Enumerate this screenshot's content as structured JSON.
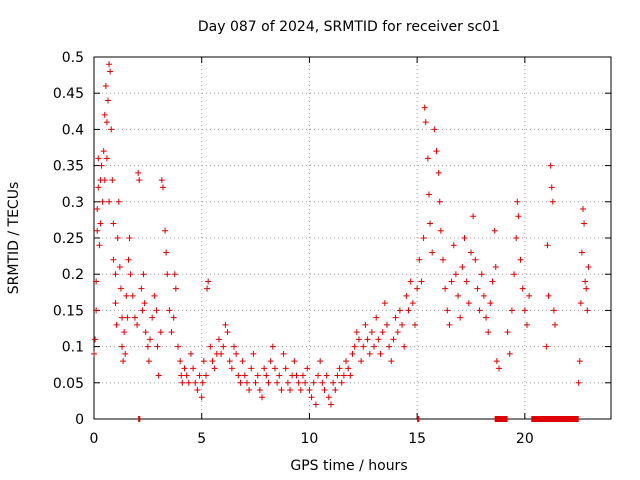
{
  "chart_data": {
    "type": "scatter",
    "title": "Day 087 of 2024, SRMTID for receiver sc01",
    "xlabel": "GPS time / hours",
    "ylabel": "SRMTID / TECUs",
    "xlim": [
      0,
      24
    ],
    "ylim": [
      0,
      0.5
    ],
    "xticks": [
      0,
      5,
      10,
      15,
      20
    ],
    "yticks": [
      0,
      0.05,
      0.1,
      0.15,
      0.2,
      0.25,
      0.3,
      0.35,
      0.4,
      0.45,
      0.5
    ],
    "ytick_labels": [
      "0",
      "0.05",
      "0.1",
      "0.15",
      "0.2",
      "0.25",
      "0.3",
      "0.35",
      "0.4",
      "0.45",
      "0.5"
    ],
    "grid": true,
    "marker": "+",
    "color": "#e00000",
    "series": [
      {
        "name": "SRMTID",
        "points": [
          [
            0.0,
            0.09
          ],
          [
            0.05,
            0.11
          ],
          [
            0.1,
            0.19
          ],
          [
            0.1,
            0.15
          ],
          [
            0.15,
            0.26
          ],
          [
            0.15,
            0.29
          ],
          [
            0.2,
            0.32
          ],
          [
            0.2,
            0.36
          ],
          [
            0.25,
            0.24
          ],
          [
            0.3,
            0.27
          ],
          [
            0.3,
            0.33
          ],
          [
            0.35,
            0.35
          ],
          [
            0.4,
            0.3
          ],
          [
            0.45,
            0.37
          ],
          [
            0.5,
            0.42
          ],
          [
            0.5,
            0.33
          ],
          [
            0.55,
            0.46
          ],
          [
            0.6,
            0.41
          ],
          [
            0.6,
            0.36
          ],
          [
            0.65,
            0.44
          ],
          [
            0.7,
            0.49
          ],
          [
            0.75,
            0.48
          ],
          [
            0.7,
            0.3
          ],
          [
            0.8,
            0.4
          ],
          [
            0.85,
            0.33
          ],
          [
            0.9,
            0.27
          ],
          [
            0.9,
            0.22
          ],
          [
            1.0,
            0.2
          ],
          [
            1.0,
            0.16
          ],
          [
            1.05,
            0.13
          ],
          [
            1.1,
            0.25
          ],
          [
            1.15,
            0.3
          ],
          [
            1.2,
            0.21
          ],
          [
            1.25,
            0.18
          ],
          [
            1.3,
            0.14
          ],
          [
            1.3,
            0.1
          ],
          [
            1.35,
            0.08
          ],
          [
            1.4,
            0.12
          ],
          [
            1.45,
            0.09
          ],
          [
            1.5,
            0.17
          ],
          [
            1.55,
            0.14
          ],
          [
            1.6,
            0.22
          ],
          [
            1.65,
            0.25
          ],
          [
            1.7,
            0.2
          ],
          [
            1.8,
            0.17
          ],
          [
            1.9,
            0.14
          ],
          [
            2.0,
            0.13
          ],
          [
            2.05,
            0.34
          ],
          [
            2.1,
            0.33
          ],
          [
            2.2,
            0.18
          ],
          [
            2.25,
            0.15
          ],
          [
            2.3,
            0.2
          ],
          [
            2.35,
            0.16
          ],
          [
            2.4,
            0.12
          ],
          [
            2.5,
            0.1
          ],
          [
            2.55,
            0.08
          ],
          [
            2.6,
            0.11
          ],
          [
            2.7,
            0.14
          ],
          [
            2.8,
            0.17
          ],
          [
            2.9,
            0.15
          ],
          [
            2.95,
            0.1
          ],
          [
            3.0,
            0.06
          ],
          [
            3.1,
            0.12
          ],
          [
            3.15,
            0.33
          ],
          [
            3.2,
            0.32
          ],
          [
            3.3,
            0.26
          ],
          [
            3.35,
            0.23
          ],
          [
            3.4,
            0.2
          ],
          [
            3.5,
            0.15
          ],
          [
            3.6,
            0.12
          ],
          [
            3.7,
            0.14
          ],
          [
            3.75,
            0.2
          ],
          [
            3.8,
            0.18
          ],
          [
            3.9,
            0.1
          ],
          [
            4.0,
            0.08
          ],
          [
            4.05,
            0.06
          ],
          [
            4.1,
            0.05
          ],
          [
            4.2,
            0.07
          ],
          [
            4.3,
            0.06
          ],
          [
            4.4,
            0.05
          ],
          [
            4.5,
            0.09
          ],
          [
            4.6,
            0.07
          ],
          [
            4.7,
            0.05
          ],
          [
            4.8,
            0.04
          ],
          [
            4.9,
            0.06
          ],
          [
            5.0,
            0.03
          ],
          [
            5.05,
            0.05
          ],
          [
            5.1,
            0.08
          ],
          [
            5.2,
            0.06
          ],
          [
            5.25,
            0.18
          ],
          [
            5.3,
            0.19
          ],
          [
            5.4,
            0.1
          ],
          [
            5.5,
            0.08
          ],
          [
            5.6,
            0.07
          ],
          [
            5.7,
            0.09
          ],
          [
            5.8,
            0.11
          ],
          [
            5.9,
            0.09
          ],
          [
            6.0,
            0.1
          ],
          [
            6.1,
            0.13
          ],
          [
            6.2,
            0.12
          ],
          [
            6.3,
            0.08
          ],
          [
            6.4,
            0.07
          ],
          [
            6.5,
            0.1
          ],
          [
            6.6,
            0.09
          ],
          [
            6.7,
            0.06
          ],
          [
            6.8,
            0.05
          ],
          [
            6.9,
            0.08
          ],
          [
            7.0,
            0.06
          ],
          [
            7.1,
            0.05
          ],
          [
            7.2,
            0.04
          ],
          [
            7.3,
            0.07
          ],
          [
            7.4,
            0.09
          ],
          [
            7.5,
            0.05
          ],
          [
            7.6,
            0.06
          ],
          [
            7.7,
            0.04
          ],
          [
            7.8,
            0.03
          ],
          [
            7.9,
            0.07
          ],
          [
            8.0,
            0.06
          ],
          [
            8.1,
            0.05
          ],
          [
            8.2,
            0.08
          ],
          [
            8.3,
            0.1
          ],
          [
            8.4,
            0.07
          ],
          [
            8.5,
            0.05
          ],
          [
            8.6,
            0.06
          ],
          [
            8.7,
            0.04
          ],
          [
            8.8,
            0.09
          ],
          [
            8.9,
            0.07
          ],
          [
            9.0,
            0.05
          ],
          [
            9.1,
            0.04
          ],
          [
            9.2,
            0.06
          ],
          [
            9.3,
            0.08
          ],
          [
            9.4,
            0.06
          ],
          [
            9.5,
            0.05
          ],
          [
            9.6,
            0.04
          ],
          [
            9.7,
            0.06
          ],
          [
            9.8,
            0.05
          ],
          [
            9.9,
            0.07
          ],
          [
            10.0,
            0.04
          ],
          [
            10.1,
            0.03
          ],
          [
            10.2,
            0.05
          ],
          [
            10.3,
            0.02
          ],
          [
            10.4,
            0.06
          ],
          [
            10.5,
            0.08
          ],
          [
            10.6,
            0.05
          ],
          [
            10.7,
            0.04
          ],
          [
            10.8,
            0.06
          ],
          [
            10.9,
            0.03
          ],
          [
            11.0,
            0.02
          ],
          [
            11.1,
            0.05
          ],
          [
            11.2,
            0.04
          ],
          [
            11.3,
            0.06
          ],
          [
            11.4,
            0.07
          ],
          [
            11.5,
            0.05
          ],
          [
            11.6,
            0.06
          ],
          [
            11.7,
            0.08
          ],
          [
            11.8,
            0.07
          ],
          [
            11.9,
            0.06
          ],
          [
            12.0,
            0.09
          ],
          [
            12.1,
            0.1
          ],
          [
            12.2,
            0.12
          ],
          [
            12.3,
            0.11
          ],
          [
            12.4,
            0.08
          ],
          [
            12.5,
            0.1
          ],
          [
            12.6,
            0.13
          ],
          [
            12.7,
            0.11
          ],
          [
            12.8,
            0.09
          ],
          [
            12.9,
            0.12
          ],
          [
            13.0,
            0.1
          ],
          [
            13.1,
            0.14
          ],
          [
            13.2,
            0.11
          ],
          [
            13.3,
            0.09
          ],
          [
            13.4,
            0.12
          ],
          [
            13.5,
            0.16
          ],
          [
            13.6,
            0.13
          ],
          [
            13.7,
            0.1
          ],
          [
            13.8,
            0.08
          ],
          [
            13.9,
            0.11
          ],
          [
            14.0,
            0.14
          ],
          [
            14.1,
            0.12
          ],
          [
            14.2,
            0.15
          ],
          [
            14.3,
            0.13
          ],
          [
            14.4,
            0.1
          ],
          [
            14.5,
            0.17
          ],
          [
            14.6,
            0.15
          ],
          [
            14.7,
            0.19
          ],
          [
            14.8,
            0.16
          ],
          [
            14.9,
            0.13
          ],
          [
            15.0,
            0.18
          ],
          [
            15.1,
            0.22
          ],
          [
            15.2,
            0.19
          ],
          [
            15.3,
            0.25
          ],
          [
            15.35,
            0.43
          ],
          [
            15.4,
            0.41
          ],
          [
            15.5,
            0.36
          ],
          [
            15.55,
            0.31
          ],
          [
            15.6,
            0.27
          ],
          [
            15.7,
            0.23
          ],
          [
            15.8,
            0.4
          ],
          [
            15.9,
            0.37
          ],
          [
            16.0,
            0.34
          ],
          [
            16.05,
            0.3
          ],
          [
            16.1,
            0.26
          ],
          [
            16.2,
            0.22
          ],
          [
            16.3,
            0.18
          ],
          [
            16.4,
            0.15
          ],
          [
            16.5,
            0.13
          ],
          [
            16.6,
            0.19
          ],
          [
            16.7,
            0.24
          ],
          [
            16.8,
            0.2
          ],
          [
            16.9,
            0.17
          ],
          [
            17.0,
            0.14
          ],
          [
            17.1,
            0.21
          ],
          [
            17.2,
            0.25
          ],
          [
            17.3,
            0.19
          ],
          [
            17.4,
            0.16
          ],
          [
            17.5,
            0.23
          ],
          [
            17.6,
            0.28
          ],
          [
            17.7,
            0.22
          ],
          [
            17.8,
            0.18
          ],
          [
            17.9,
            0.15
          ],
          [
            18.0,
            0.2
          ],
          [
            18.1,
            0.17
          ],
          [
            18.2,
            0.14
          ],
          [
            18.3,
            0.12
          ],
          [
            18.4,
            0.16
          ],
          [
            18.5,
            0.19
          ],
          [
            18.6,
            0.26
          ],
          [
            18.65,
            0.21
          ],
          [
            18.7,
            0.08
          ],
          [
            18.8,
            0.07
          ],
          [
            19.2,
            0.12
          ],
          [
            19.3,
            0.09
          ],
          [
            19.4,
            0.15
          ],
          [
            19.5,
            0.2
          ],
          [
            19.6,
            0.25
          ],
          [
            19.65,
            0.3
          ],
          [
            19.7,
            0.28
          ],
          [
            19.8,
            0.22
          ],
          [
            19.9,
            0.18
          ],
          [
            20.0,
            0.15
          ],
          [
            20.1,
            0.13
          ],
          [
            20.2,
            0.17
          ],
          [
            21.0,
            0.1
          ],
          [
            21.05,
            0.24
          ],
          [
            21.1,
            0.17
          ],
          [
            21.2,
            0.35
          ],
          [
            21.25,
            0.32
          ],
          [
            21.3,
            0.3
          ],
          [
            21.35,
            0.15
          ],
          [
            21.4,
            0.13
          ],
          [
            22.5,
            0.05
          ],
          [
            22.55,
            0.08
          ],
          [
            22.6,
            0.16
          ],
          [
            22.65,
            0.23
          ],
          [
            22.7,
            0.29
          ],
          [
            22.75,
            0.27
          ],
          [
            22.8,
            0.19
          ],
          [
            22.85,
            0.18
          ],
          [
            22.9,
            0.15
          ],
          [
            22.95,
            0.21
          ]
        ],
        "zero_segments": [
          [
            2.05,
            2.15
          ],
          [
            15.0,
            15.1
          ],
          [
            18.6,
            19.2
          ],
          [
            20.3,
            22.5
          ]
        ]
      }
    ]
  }
}
